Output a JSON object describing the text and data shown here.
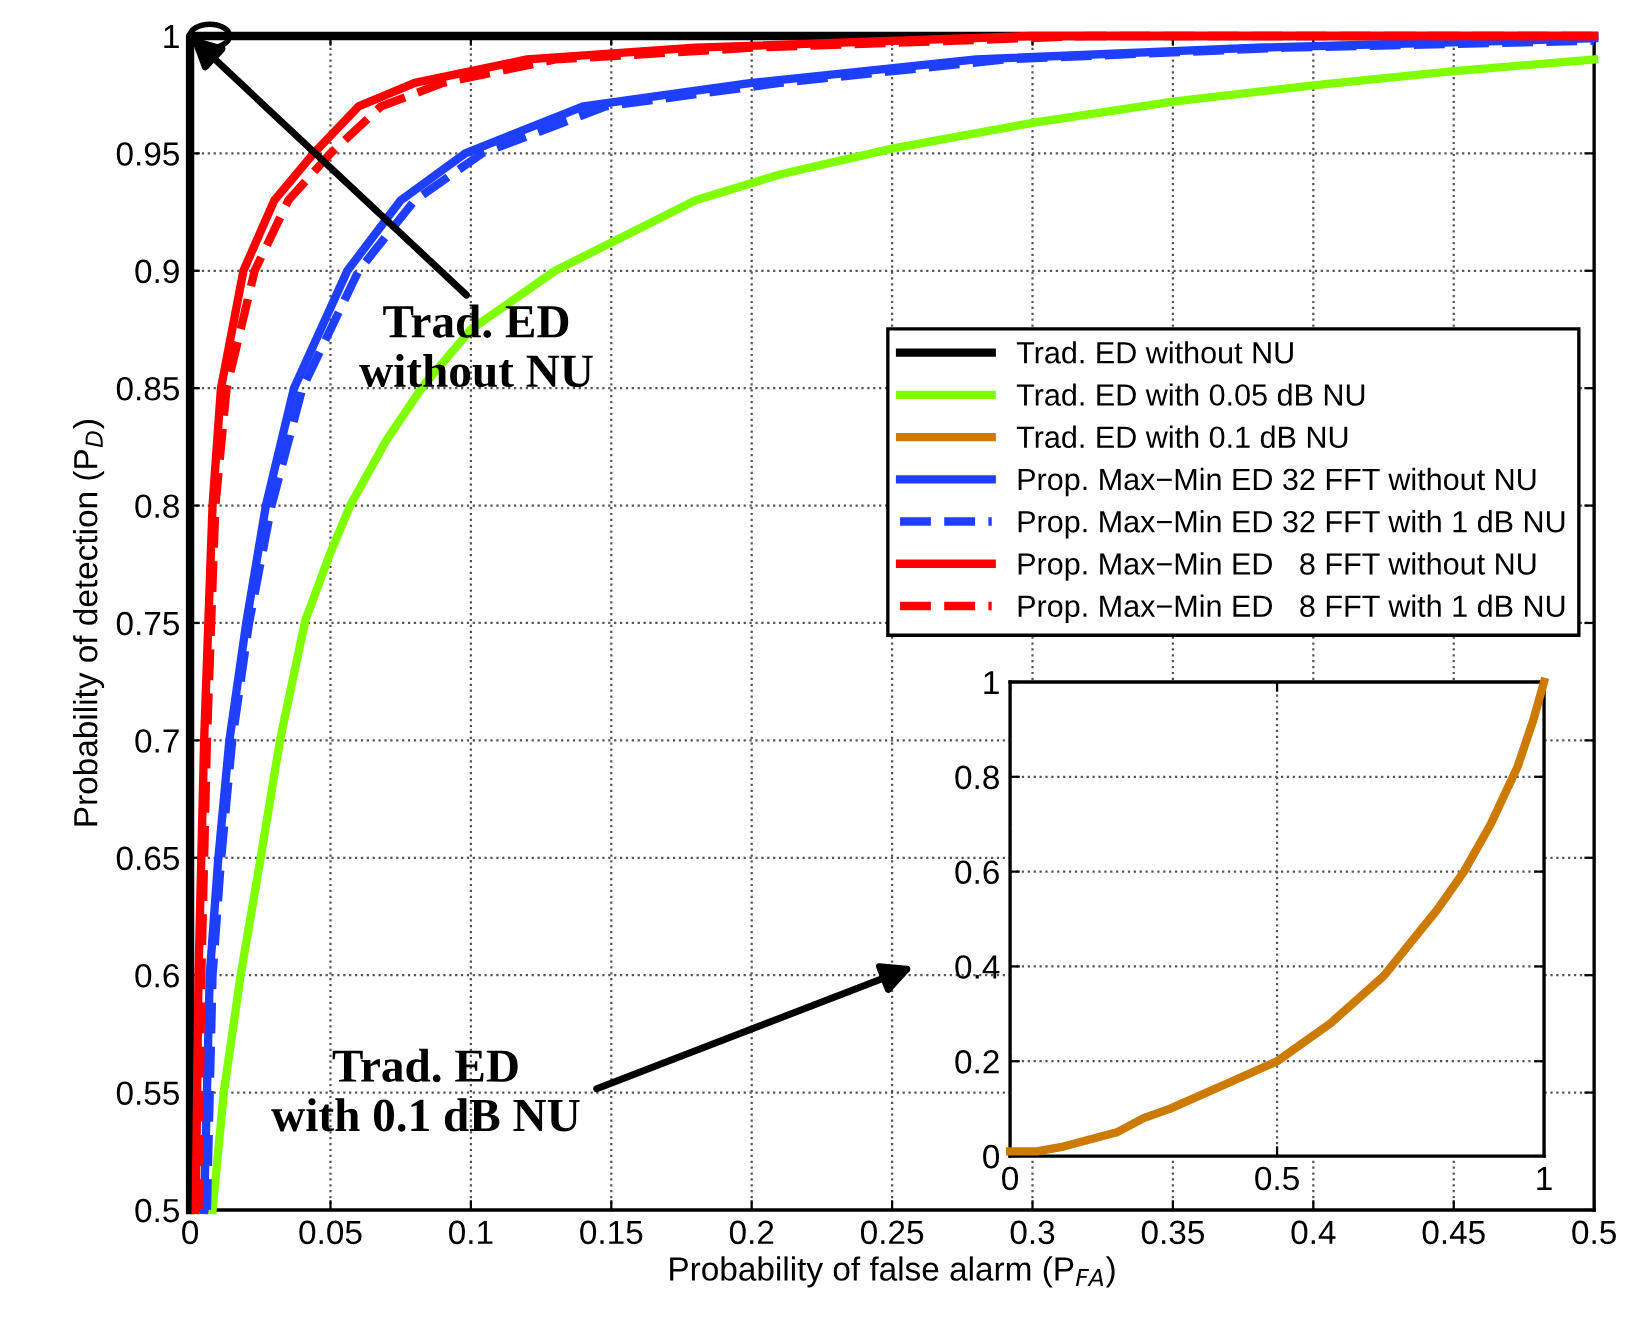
{
  "chart_data": [
    {
      "type": "line",
      "xlabel": "Probability of false alarm (P$_{FA}$)",
      "ylabel": "Probability of detection (P$_{D}$)",
      "xlim": [
        0,
        0.5
      ],
      "ylim": [
        0.5,
        1
      ],
      "xticks": [
        0,
        0.05,
        0.1,
        0.15,
        0.2,
        0.25,
        0.3,
        0.35,
        0.4,
        0.45,
        0.5
      ],
      "yticks": [
        0.5,
        0.55,
        0.6,
        0.65,
        0.7,
        0.75,
        0.8,
        0.85,
        0.9,
        0.95,
        1
      ],
      "grid": true,
      "legend": "right",
      "marker": "none",
      "annotations": [
        {
          "text": "Trad. ED\nwithout NU",
          "x": 0,
          "y": 1
        },
        "Trad. ED\nwith 0.1 dB NU"
      ],
      "series": [
        {
          "name": "Trad. ED without NU",
          "color": "#000000",
          "line_style": "solid",
          "x": [
            0,
            0,
            0.5
          ],
          "values": [
            0.5,
            1,
            1
          ]
        },
        {
          "name": "Trad. ED with 0.05 dB NU",
          "color": "#80ff00",
          "line_style": "solid",
          "x": [
            0.008,
            0.012,
            0.018,
            0.025,
            0.032,
            0.041,
            0.05,
            0.057,
            0.07,
            0.083,
            0.1,
            0.13,
            0.18,
            0.21,
            0.25,
            0.3,
            0.35,
            0.4,
            0.45,
            0.5
          ],
          "values": [
            0.5,
            0.55,
            0.6,
            0.649,
            0.7,
            0.751,
            0.78,
            0.8,
            0.828,
            0.851,
            0.875,
            0.9,
            0.93,
            0.941,
            0.952,
            0.963,
            0.972,
            0.979,
            0.985,
            0.99
          ]
        },
        {
          "name": "Prop. Max−Min ED 32 FFT without NU",
          "color": "#1f3fff",
          "line_style": "solid",
          "x": [
            0.005,
            0.007,
            0.01,
            0.014,
            0.02,
            0.027,
            0.037,
            0.056,
            0.075,
            0.098,
            0.14,
            0.2,
            0.28,
            0.38,
            0.5
          ],
          "values": [
            0.5,
            0.6,
            0.649,
            0.7,
            0.75,
            0.8,
            0.85,
            0.9,
            0.93,
            0.95,
            0.97,
            0.98,
            0.99,
            0.995,
            0.999
          ]
        },
        {
          "name": "Prop. Max−Min ED 32 FFT with 1 dB NU",
          "color": "#1f3fff",
          "line_style": "dashed",
          "x": [
            0.006,
            0.008,
            0.011,
            0.015,
            0.021,
            0.029,
            0.04,
            0.06,
            0.08,
            0.104,
            0.148,
            0.21,
            0.29,
            0.39,
            0.5
          ],
          "values": [
            0.5,
            0.6,
            0.649,
            0.7,
            0.75,
            0.8,
            0.85,
            0.9,
            0.93,
            0.95,
            0.97,
            0.98,
            0.99,
            0.995,
            0.998
          ]
        },
        {
          "name": "Prop. Max−Min ED   8 FFT without NU",
          "color": "#ff0000",
          "line_style": "solid",
          "x": [
            0.002,
            0.003,
            0.005,
            0.008,
            0.011,
            0.019,
            0.03,
            0.044,
            0.06,
            0.08,
            0.12,
            0.18,
            0.3,
            0.5
          ],
          "values": [
            0.5,
            0.6,
            0.7,
            0.8,
            0.85,
            0.9,
            0.93,
            0.95,
            0.97,
            0.98,
            0.99,
            0.995,
            1,
            1
          ]
        },
        {
          "name": "Prop. Max−Min ED   8 FFT with 1 dB NU",
          "color": "#ff0000",
          "line_style": "dashed",
          "x": [
            0.003,
            0.004,
            0.006,
            0.009,
            0.013,
            0.023,
            0.035,
            0.05,
            0.068,
            0.09,
            0.13,
            0.2,
            0.32,
            0.5
          ],
          "values": [
            0.5,
            0.6,
            0.7,
            0.8,
            0.85,
            0.9,
            0.93,
            0.95,
            0.97,
            0.98,
            0.99,
            0.995,
            1,
            1
          ]
        }
      ]
    },
    {
      "type": "line",
      "xlim": [
        0,
        1
      ],
      "ylim": [
        0,
        1
      ],
      "xticks": [
        0,
        0.5,
        1
      ],
      "yticks": [
        0,
        0.2,
        0.4,
        0.6,
        0.8,
        1
      ],
      "grid": true,
      "marker": "none",
      "series": [
        {
          "name": "Trad. ED with 0.1 dB NU",
          "color": "#cc7a00",
          "line_style": "solid",
          "x": [
            0,
            0.05,
            0.1,
            0.2,
            0.25,
            0.3,
            0.4,
            0.5,
            0.6,
            0.7,
            0.75,
            0.8,
            0.85,
            0.9,
            0.95,
            0.98,
            1
          ],
          "values": [
            0.01,
            0.01,
            0.02,
            0.05,
            0.08,
            0.1,
            0.15,
            0.2,
            0.28,
            0.38,
            0.45,
            0.52,
            0.6,
            0.7,
            0.82,
            0.92,
            1
          ]
        }
      ]
    }
  ]
}
